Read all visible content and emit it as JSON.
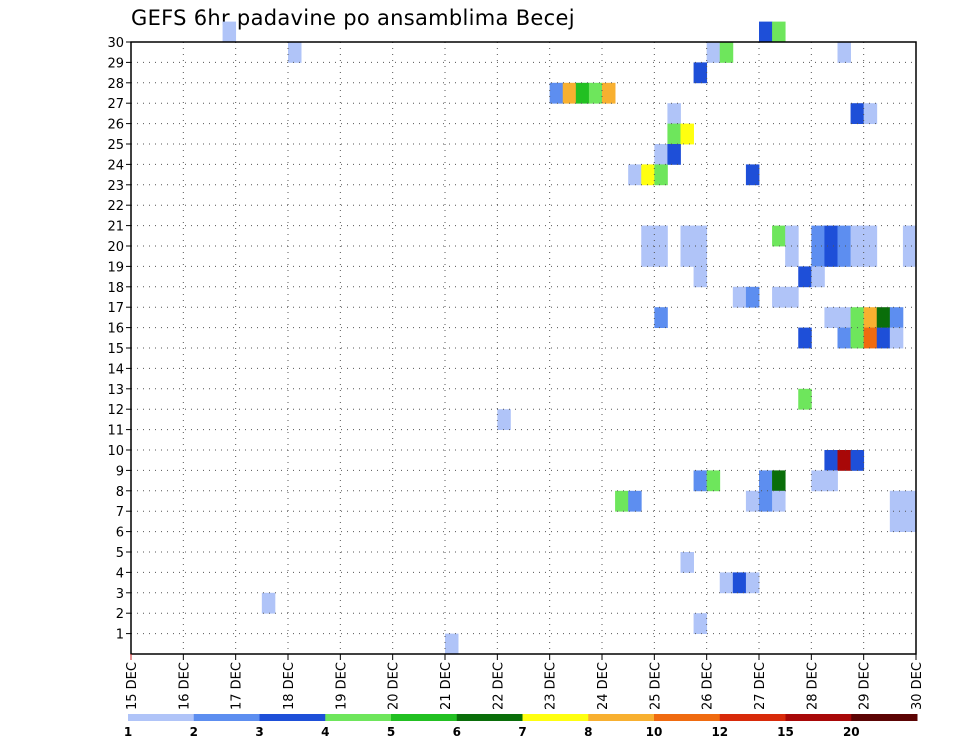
{
  "title": "GEFS 6hr padavine po ansamblima Becej",
  "chart_data": {
    "type": "heatmap",
    "title": "GEFS 6hr padavine po ansamblima Becej",
    "x_tick_labels": [
      "15 DEC",
      "16 DEC",
      "17 DEC",
      "18 DEC",
      "19 DEC",
      "20 DEC",
      "21 DEC",
      "22 DEC",
      "23 DEC",
      "24 DEC",
      "25 DEC",
      "26 DEC",
      "27 DEC",
      "28 DEC",
      "29 DEC",
      "30 DEC"
    ],
    "x_steps_per_day": 4,
    "x_range_steps": [
      0,
      60
    ],
    "y_tick_labels": [
      "1",
      "2",
      "3",
      "4",
      "5",
      "6",
      "7",
      "8",
      "9",
      "10",
      "11",
      "12",
      "13",
      "14",
      "15",
      "16",
      "17",
      "18",
      "19",
      "20",
      "21",
      "22",
      "23",
      "24",
      "25",
      "26",
      "27",
      "28",
      "29",
      "30"
    ],
    "y_range": [
      0,
      30
    ],
    "grid": true,
    "colorbar": {
      "labels": [
        "1",
        "2",
        "3",
        "4",
        "5",
        "6",
        "7",
        "8",
        "10",
        "12",
        "15",
        "20"
      ],
      "colors": [
        "#b0c4f8",
        "#5d8ef0",
        "#1e4fd8",
        "#6ee65c",
        "#22c022",
        "#0a6e0a",
        "#ffff10",
        "#f8b030",
        "#f06b10",
        "#d82a0a",
        "#a80808",
        "#5c0404"
      ]
    },
    "cells": [
      {
        "member": 30,
        "step": 7,
        "c": 0
      },
      {
        "member": 30,
        "step": 48,
        "c": 2
      },
      {
        "member": 30,
        "step": 49,
        "c": 3
      },
      {
        "member": 29,
        "step": 12,
        "c": 0
      },
      {
        "member": 29,
        "step": 44,
        "c": 0
      },
      {
        "member": 29,
        "step": 45,
        "c": 3
      },
      {
        "member": 29,
        "step": 54,
        "c": 0
      },
      {
        "member": 28,
        "step": 43,
        "c": 2
      },
      {
        "member": 27,
        "step": 32,
        "c": 1
      },
      {
        "member": 27,
        "step": 33,
        "c": 7
      },
      {
        "member": 27,
        "step": 34,
        "c": 4
      },
      {
        "member": 27,
        "step": 35,
        "c": 3
      },
      {
        "member": 27,
        "step": 36,
        "c": 7
      },
      {
        "member": 26,
        "step": 41,
        "c": 0
      },
      {
        "member": 26,
        "step": 55,
        "c": 2
      },
      {
        "member": 26,
        "step": 56,
        "c": 0
      },
      {
        "member": 25,
        "step": 41,
        "c": 3
      },
      {
        "member": 25,
        "step": 42,
        "c": 6
      },
      {
        "member": 24,
        "step": 40,
        "c": 0
      },
      {
        "member": 24,
        "step": 41,
        "c": 2
      },
      {
        "member": 23,
        "step": 38,
        "c": 0
      },
      {
        "member": 23,
        "step": 39,
        "c": 6
      },
      {
        "member": 23,
        "step": 40,
        "c": 3
      },
      {
        "member": 23,
        "step": 47,
        "c": 2
      },
      {
        "member": 20,
        "step": 39,
        "c": 0
      },
      {
        "member": 20,
        "step": 40,
        "c": 0
      },
      {
        "member": 20,
        "step": 42,
        "c": 0
      },
      {
        "member": 20,
        "step": 43,
        "c": 0
      },
      {
        "member": 20,
        "step": 49,
        "c": 3
      },
      {
        "member": 20,
        "step": 50,
        "c": 0
      },
      {
        "member": 20,
        "step": 52,
        "c": 1
      },
      {
        "member": 20,
        "step": 53,
        "c": 2
      },
      {
        "member": 20,
        "step": 54,
        "c": 1
      },
      {
        "member": 20,
        "step": 55,
        "c": 0
      },
      {
        "member": 20,
        "step": 56,
        "c": 0
      },
      {
        "member": 20,
        "step": 59,
        "c": 0
      },
      {
        "member": 19,
        "step": 39,
        "c": 0
      },
      {
        "member": 19,
        "step": 40,
        "c": 0
      },
      {
        "member": 19,
        "step": 42,
        "c": 0
      },
      {
        "member": 19,
        "step": 43,
        "c": 0
      },
      {
        "member": 19,
        "step": 50,
        "c": 0
      },
      {
        "member": 19,
        "step": 52,
        "c": 1
      },
      {
        "member": 19,
        "step": 53,
        "c": 2
      },
      {
        "member": 19,
        "step": 54,
        "c": 1
      },
      {
        "member": 19,
        "step": 55,
        "c": 0
      },
      {
        "member": 19,
        "step": 56,
        "c": 0
      },
      {
        "member": 19,
        "step": 59,
        "c": 0
      },
      {
        "member": 18,
        "step": 43,
        "c": 0
      },
      {
        "member": 18,
        "step": 51,
        "c": 2
      },
      {
        "member": 18,
        "step": 52,
        "c": 0
      },
      {
        "member": 17,
        "step": 46,
        "c": 0
      },
      {
        "member": 17,
        "step": 47,
        "c": 1
      },
      {
        "member": 17,
        "step": 49,
        "c": 0
      },
      {
        "member": 17,
        "step": 50,
        "c": 0
      },
      {
        "member": 16,
        "step": 40,
        "c": 1
      },
      {
        "member": 16,
        "step": 53,
        "c": 0
      },
      {
        "member": 16,
        "step": 54,
        "c": 0
      },
      {
        "member": 16,
        "step": 55,
        "c": 3
      },
      {
        "member": 16,
        "step": 56,
        "c": 7
      },
      {
        "member": 16,
        "step": 57,
        "c": 5
      },
      {
        "member": 16,
        "step": 58,
        "c": 1
      },
      {
        "member": 15,
        "step": 51,
        "c": 2
      },
      {
        "member": 15,
        "step": 54,
        "c": 1
      },
      {
        "member": 15,
        "step": 55,
        "c": 3
      },
      {
        "member": 15,
        "step": 56,
        "c": 8
      },
      {
        "member": 15,
        "step": 57,
        "c": 2
      },
      {
        "member": 15,
        "step": 58,
        "c": 0
      },
      {
        "member": 12,
        "step": 51,
        "c": 3
      },
      {
        "member": 11,
        "step": 28,
        "c": 0
      },
      {
        "member": 9,
        "step": 53,
        "c": 2
      },
      {
        "member": 9,
        "step": 54,
        "c": 10
      },
      {
        "member": 9,
        "step": 55,
        "c": 2
      },
      {
        "member": 8,
        "step": 43,
        "c": 1
      },
      {
        "member": 8,
        "step": 44,
        "c": 3
      },
      {
        "member": 8,
        "step": 48,
        "c": 1
      },
      {
        "member": 8,
        "step": 49,
        "c": 5
      },
      {
        "member": 8,
        "step": 52,
        "c": 0
      },
      {
        "member": 8,
        "step": 53,
        "c": 0
      },
      {
        "member": 7,
        "step": 37,
        "c": 3
      },
      {
        "member": 7,
        "step": 38,
        "c": 1
      },
      {
        "member": 7,
        "step": 47,
        "c": 0
      },
      {
        "member": 7,
        "step": 48,
        "c": 1
      },
      {
        "member": 7,
        "step": 49,
        "c": 0
      },
      {
        "member": 7,
        "step": 58,
        "c": 0
      },
      {
        "member": 7,
        "step": 59,
        "c": 0
      },
      {
        "member": 6,
        "step": 58,
        "c": 0
      },
      {
        "member": 6,
        "step": 59,
        "c": 0
      },
      {
        "member": 4,
        "step": 42,
        "c": 0
      },
      {
        "member": 3,
        "step": 45,
        "c": 0
      },
      {
        "member": 3,
        "step": 46,
        "c": 2
      },
      {
        "member": 3,
        "step": 47,
        "c": 0
      },
      {
        "member": 2,
        "step": 10,
        "c": 0
      },
      {
        "member": 1,
        "step": 43,
        "c": 0
      },
      {
        "member": 0,
        "step": 24,
        "c": 0
      }
    ]
  }
}
